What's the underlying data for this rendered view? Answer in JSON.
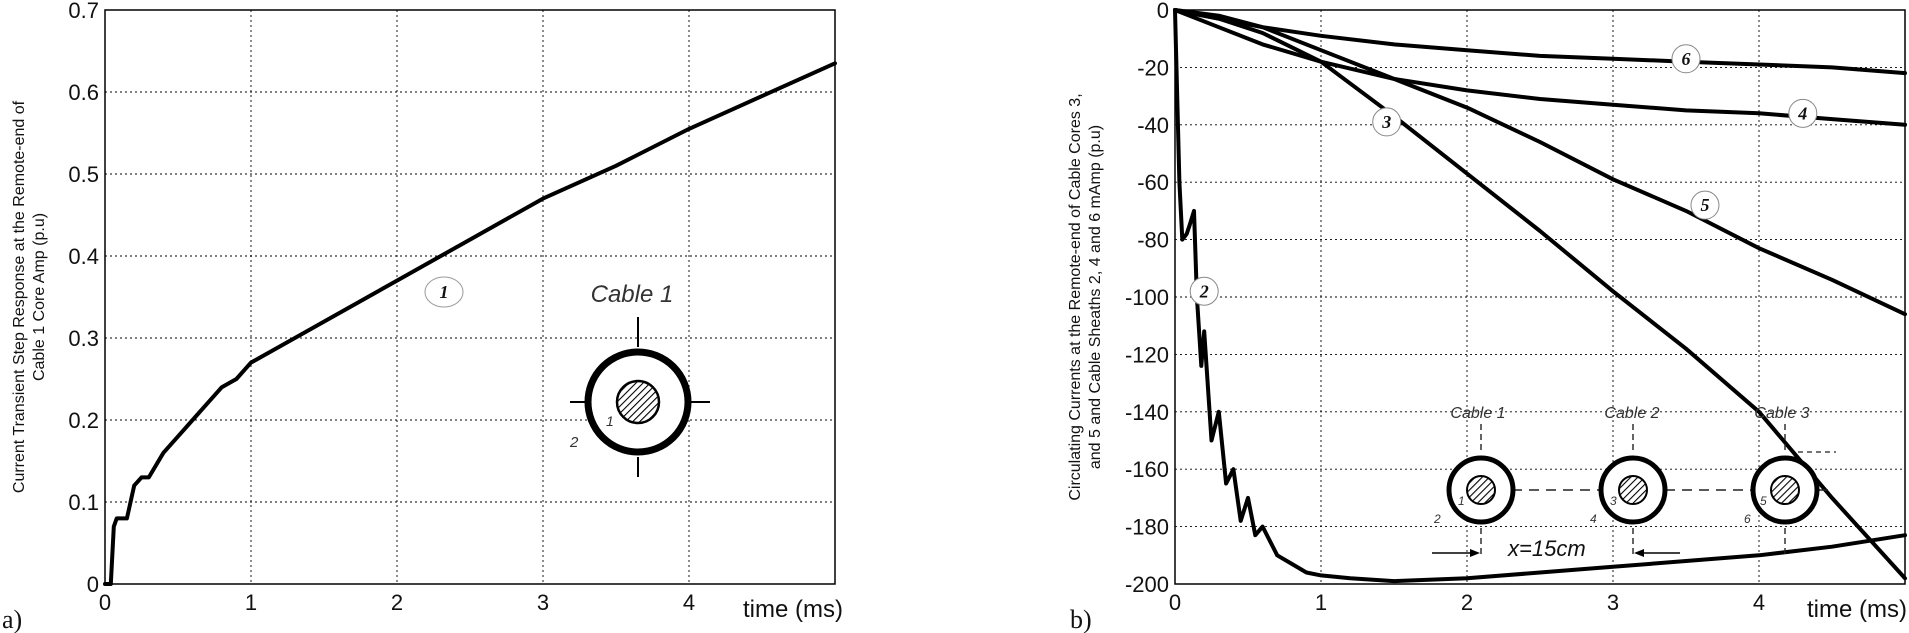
{
  "chart_data": [
    {
      "panel": "a)",
      "type": "line",
      "ylabel_line1": "Current Transient Step Response at the Remote-end of",
      "ylabel_line2": "Cable 1 Core Amp (p.u)",
      "xlabel": "time (ms)",
      "xlim": [
        0,
        5
      ],
      "ylim": [
        0,
        0.7
      ],
      "xticks": [
        "0",
        "1",
        "2",
        "3",
        "4"
      ],
      "yticks": [
        "0",
        "0.1",
        "0.2",
        "0.3",
        "0.4",
        "0.5",
        "0.6",
        "0.7"
      ],
      "grid": true,
      "series": [
        {
          "label": "1",
          "x": [
            0,
            0.04,
            0.06,
            0.08,
            0.1,
            0.15,
            0.2,
            0.25,
            0.3,
            0.4,
            0.5,
            0.6,
            0.7,
            0.8,
            0.9,
            1.0,
            1.2,
            1.5,
            2.0,
            2.5,
            3.0,
            3.5,
            4.0,
            4.5,
            5.0
          ],
          "y": [
            0,
            0.0,
            0.07,
            0.08,
            0.08,
            0.08,
            0.12,
            0.13,
            0.13,
            0.16,
            0.18,
            0.2,
            0.22,
            0.24,
            0.25,
            0.27,
            0.29,
            0.32,
            0.37,
            0.42,
            0.47,
            0.51,
            0.555,
            0.595,
            0.635
          ]
        }
      ],
      "inset": {
        "title": "Cable 1",
        "labels": [
          "1",
          "2"
        ]
      }
    },
    {
      "panel": "b)",
      "type": "line",
      "ylabel_line1": "Circulating Currents at the Remote-end of Cable Cores 3,",
      "ylabel_line2": "and 5 and Cable Sheaths 2, 4 and 6 mAmp (p.u)",
      "xlabel": "time (ms)",
      "xlim": [
        0,
        5
      ],
      "ylim": [
        -200,
        0
      ],
      "xticks": [
        "0",
        "1",
        "2",
        "3",
        "4"
      ],
      "yticks": [
        "0",
        "-20",
        "-40",
        "-60",
        "-80",
        "-100",
        "-120",
        "-140",
        "-160",
        "-180",
        "-200"
      ],
      "grid": true,
      "series": [
        {
          "label": "2",
          "x": [
            0,
            0.03,
            0.05,
            0.08,
            0.1,
            0.13,
            0.15,
            0.18,
            0.2,
            0.25,
            0.3,
            0.35,
            0.4,
            0.45,
            0.5,
            0.55,
            0.6,
            0.7,
            0.8,
            0.9,
            1.0,
            1.2,
            1.5,
            2.0,
            2.5,
            3.0,
            3.5,
            4.0,
            4.5,
            5.0
          ],
          "y": [
            0,
            -60,
            -80,
            -78,
            -75,
            -70,
            -100,
            -124,
            -112,
            -150,
            -140,
            -165,
            -160,
            -178,
            -170,
            -183,
            -180,
            -190,
            -193,
            -196,
            -197,
            -198,
            -199,
            -198,
            -196,
            -194,
            -192,
            -190,
            -187,
            -183
          ]
        },
        {
          "label": "3",
          "x": [
            0,
            0.3,
            0.6,
            1.0,
            1.5,
            2.0,
            2.5,
            3.0,
            3.5,
            4.0,
            4.5,
            5.0
          ],
          "y": [
            0,
            -3,
            -8,
            -18,
            -37,
            -57,
            -77,
            -98,
            -118,
            -140,
            -170,
            -198
          ]
        },
        {
          "label": "4",
          "x": [
            0,
            0.3,
            0.6,
            1.0,
            1.5,
            2.0,
            2.5,
            3.0,
            3.5,
            4.0,
            4.5,
            5.0
          ],
          "y": [
            0,
            -6,
            -12,
            -18,
            -24,
            -28,
            -31,
            -33,
            -35,
            -36,
            -38,
            -40
          ]
        },
        {
          "label": "5",
          "x": [
            0,
            0.3,
            0.6,
            1.0,
            1.5,
            2.0,
            2.5,
            3.0,
            3.5,
            4.0,
            4.5,
            5.0
          ],
          "y": [
            0,
            -2,
            -6,
            -14,
            -24,
            -34,
            -46,
            -59,
            -70,
            -83,
            -94,
            -106
          ]
        },
        {
          "label": "6",
          "x": [
            0,
            0.3,
            0.6,
            1.0,
            1.5,
            2.0,
            2.5,
            3.0,
            3.5,
            4.0,
            4.5,
            5.0
          ],
          "y": [
            0,
            -3,
            -6,
            -9,
            -12,
            -14,
            -16,
            -17,
            -18,
            -19,
            -20,
            -22
          ]
        }
      ],
      "inset": {
        "cables": [
          "Cable 1",
          "Cable 2",
          "Cable 3"
        ],
        "core_labels": [
          "1",
          "3",
          "5"
        ],
        "sheath_labels": [
          "2",
          "4",
          "6"
        ],
        "spacing_label": "x=15cm"
      }
    }
  ]
}
